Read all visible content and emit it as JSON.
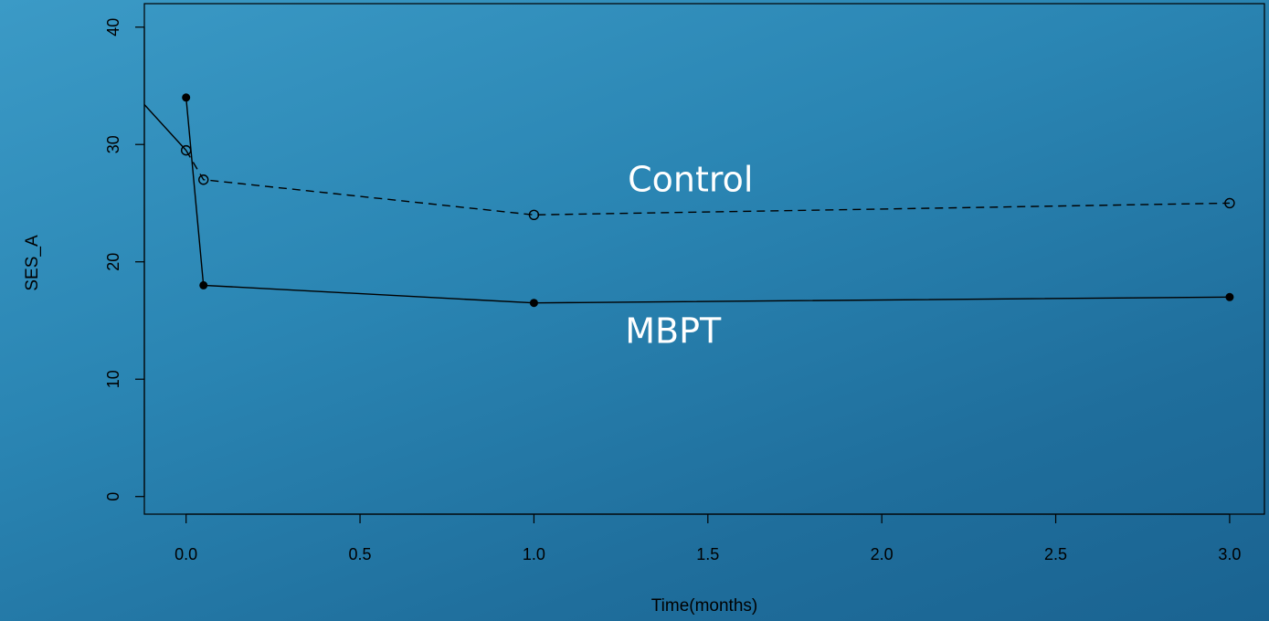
{
  "chart_data": {
    "type": "line",
    "title": "",
    "xlabel": "Time(months)",
    "ylabel": "SES_A",
    "xlim": [
      -0.12,
      3.1
    ],
    "ylim": [
      -1.5,
      42
    ],
    "x_ticks": [
      0.0,
      0.5,
      1.0,
      1.5,
      2.0,
      2.5,
      3.0
    ],
    "x_tick_labels": [
      "0.0",
      "0.5",
      "1.0",
      "1.5",
      "2.0",
      "2.5",
      "3.0"
    ],
    "y_ticks": [
      0,
      10,
      20,
      30,
      40
    ],
    "y_tick_labels": [
      "0",
      "10",
      "20",
      "30",
      "40"
    ],
    "grid": false,
    "legend": "none",
    "series": [
      {
        "name": "Control",
        "line_style": "dashed",
        "marker": "open-circle",
        "x": [
          0.0,
          0.05,
          1.0,
          3.0
        ],
        "values": [
          29.5,
          27.0,
          24.0,
          25.0
        ]
      },
      {
        "name": "MBPT",
        "line_style": "solid",
        "marker": "filled-circle",
        "x": [
          0.0,
          0.05,
          1.0,
          3.0
        ],
        "values": [
          34.0,
          18.0,
          16.5,
          17.0
        ]
      }
    ],
    "annotations": [
      {
        "text": "Control",
        "x": 1.45,
        "y": 26.0,
        "series": "Control"
      },
      {
        "text": "MBPT",
        "x": 1.4,
        "y": 13.1,
        "series": "MBPT"
      }
    ],
    "extra_line": {
      "x": [
        -0.12,
        0.0
      ],
      "values": [
        33.4,
        29.5
      ]
    }
  }
}
